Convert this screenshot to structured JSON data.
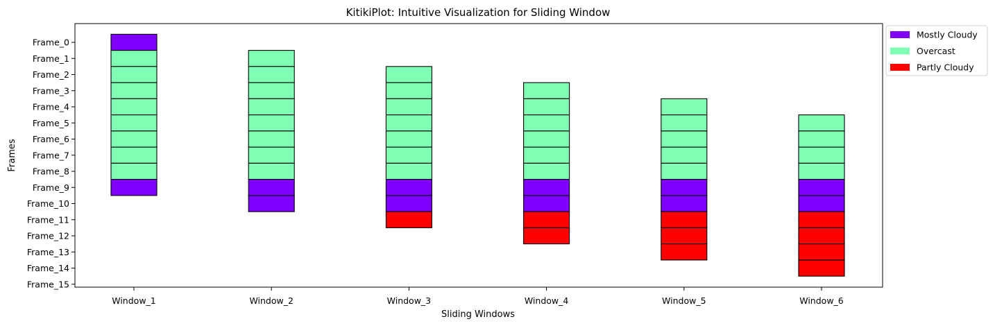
{
  "chart_data": {
    "type": "bar",
    "title": "KitikiPlot: Intuitive Visualization for Sliding Window",
    "xlabel": "Sliding Windows",
    "ylabel": "Frames",
    "categories": [
      "Window_1",
      "Window_2",
      "Window_3",
      "Window_4",
      "Window_5",
      "Window_6"
    ],
    "y_ticks": [
      "Frame_0",
      "Frame_1",
      "Frame_2",
      "Frame_3",
      "Frame_4",
      "Frame_5",
      "Frame_6",
      "Frame_7",
      "Frame_8",
      "Frame_9",
      "Frame_10",
      "Frame_11",
      "Frame_12",
      "Frame_13",
      "Frame_14",
      "Frame_15"
    ],
    "legend": [
      {
        "label": "Mostly Cloudy",
        "color": "#8000ff"
      },
      {
        "label": "Overcast",
        "color": "#80ffb4"
      },
      {
        "label": "Partly Cloudy",
        "color": "#ff0000"
      }
    ],
    "legend_position": "outside-top-right",
    "grid": false,
    "windows": [
      {
        "name": "Window_1",
        "start_frame": 0,
        "cells": [
          "Mostly Cloudy",
          "Overcast",
          "Overcast",
          "Overcast",
          "Overcast",
          "Overcast",
          "Overcast",
          "Overcast",
          "Overcast",
          "Mostly Cloudy"
        ]
      },
      {
        "name": "Window_2",
        "start_frame": 1,
        "cells": [
          "Overcast",
          "Overcast",
          "Overcast",
          "Overcast",
          "Overcast",
          "Overcast",
          "Overcast",
          "Overcast",
          "Mostly Cloudy",
          "Mostly Cloudy"
        ]
      },
      {
        "name": "Window_3",
        "start_frame": 2,
        "cells": [
          "Overcast",
          "Overcast",
          "Overcast",
          "Overcast",
          "Overcast",
          "Overcast",
          "Overcast",
          "Mostly Cloudy",
          "Mostly Cloudy",
          "Partly Cloudy"
        ]
      },
      {
        "name": "Window_4",
        "start_frame": 3,
        "cells": [
          "Overcast",
          "Overcast",
          "Overcast",
          "Overcast",
          "Overcast",
          "Overcast",
          "Mostly Cloudy",
          "Mostly Cloudy",
          "Partly Cloudy",
          "Partly Cloudy"
        ]
      },
      {
        "name": "Window_5",
        "start_frame": 4,
        "cells": [
          "Overcast",
          "Overcast",
          "Overcast",
          "Overcast",
          "Overcast",
          "Mostly Cloudy",
          "Mostly Cloudy",
          "Partly Cloudy",
          "Partly Cloudy",
          "Partly Cloudy"
        ]
      },
      {
        "name": "Window_6",
        "start_frame": 5,
        "cells": [
          "Overcast",
          "Overcast",
          "Overcast",
          "Overcast",
          "Mostly Cloudy",
          "Mostly Cloudy",
          "Partly Cloudy",
          "Partly Cloudy",
          "Partly Cloudy",
          "Partly Cloudy"
        ]
      }
    ]
  }
}
